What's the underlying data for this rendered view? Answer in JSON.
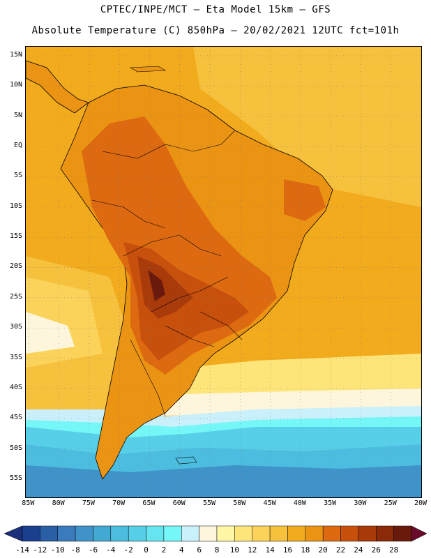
{
  "header": {
    "line1": "CPTEC/INPE/MCT –  Eta Model 15km – GFS",
    "line2": "Absolute Temperature (C) 850hPa – 20/02/2021 12UTC fct=101h"
  },
  "map": {
    "region": "South America",
    "lat_labels": [
      "15N",
      "10N",
      "5N",
      "EQ",
      "5S",
      "10S",
      "15S",
      "20S",
      "25S",
      "30S",
      "35S",
      "40S",
      "45S",
      "50S",
      "55S"
    ],
    "lon_labels": [
      "85W",
      "80W",
      "75W",
      "70W",
      "65W",
      "60W",
      "55W",
      "50W",
      "45W",
      "40W",
      "35W",
      "30W",
      "25W",
      "20W"
    ],
    "lat_values": [
      15,
      10,
      5,
      0,
      -5,
      -10,
      -15,
      -20,
      -25,
      -30,
      -35,
      -40,
      -45,
      -50,
      -55
    ],
    "lon_values": [
      -85,
      -80,
      -75,
      -70,
      -65,
      -60,
      -55,
      -50,
      -45,
      -40,
      -35,
      -30,
      -25,
      -20
    ],
    "bounds": {
      "lon_min": -85.5,
      "lon_max": -20,
      "lat_min": -58,
      "lat_max": 16.5
    }
  },
  "legend": {
    "labels": [
      "-14",
      "-12",
      "-10",
      "-8",
      "-6",
      "-4",
      "-2",
      "0",
      "2",
      "4",
      "6",
      "8",
      "10",
      "12",
      "14",
      "16",
      "18",
      "20",
      "22",
      "24",
      "26",
      "28"
    ],
    "colors": [
      "#1b3f8f",
      "#2a5fa6",
      "#3a7bbd",
      "#3f93c9",
      "#42a9d3",
      "#4cbddf",
      "#58cfe8",
      "#66e4ef",
      "#75f7f7",
      "#c9f0fb",
      "#fdf6dc",
      "#fff7a6",
      "#fde57a",
      "#fbd35a",
      "#f6c13c",
      "#f2ab1d",
      "#eb9313",
      "#dd6a10",
      "#c8500d",
      "#a93a0a",
      "#8a2a09",
      "#6a1a0c"
    ],
    "low_end_color": "#1b2f7a",
    "high_end_color": "#6a0a2a"
  }
}
